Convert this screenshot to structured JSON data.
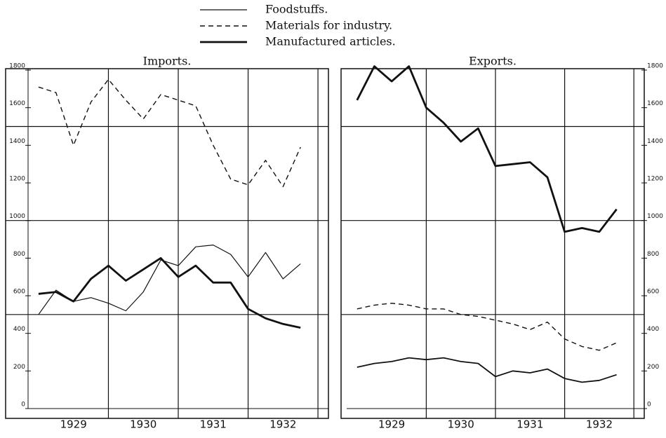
{
  "chart_data": [
    {
      "type": "line",
      "title": "Imports.",
      "x": [
        1929.0,
        1929.25,
        1929.5,
        1929.75,
        1930.0,
        1930.25,
        1930.5,
        1930.75,
        1931.0,
        1931.25,
        1931.5,
        1931.75,
        1932.0,
        1932.25,
        1932.5,
        1932.75
      ],
      "xlim": [
        1928.85,
        1933.15
      ],
      "xticks": [
        {
          "value": 1929.5,
          "label": "1929"
        },
        {
          "value": 1930.5,
          "label": "1930"
        },
        {
          "value": 1931.5,
          "label": "1931"
        },
        {
          "value": 1932.5,
          "label": "1932"
        }
      ],
      "xgrid": [
        1930,
        1931,
        1932,
        1933
      ],
      "ylim": [
        0,
        1800
      ],
      "yticks": [
        0,
        200,
        400,
        600,
        800,
        1000,
        1200,
        1400,
        1600,
        1800
      ],
      "ygrid": [
        500,
        1000,
        1500
      ],
      "axis_side": "left",
      "series": [
        {
          "name": "Foodstuffs.",
          "color": "#111111",
          "style": "solid",
          "width": 1.2,
          "values": [
            500,
            630,
            570,
            590,
            560,
            520,
            620,
            790,
            760,
            860,
            870,
            820,
            700,
            830,
            690,
            770
          ]
        },
        {
          "name": "Materials for industry.",
          "color": "#111111",
          "style": "dashed",
          "width": 1.4,
          "values": [
            1710,
            1680,
            1400,
            1630,
            1750,
            1640,
            1540,
            1670,
            1640,
            1610,
            1400,
            1220,
            1190,
            1320,
            1180,
            1390
          ]
        },
        {
          "name": "Manufactured articles.",
          "color": "#111111",
          "style": "solid",
          "width": 2.8,
          "values": [
            610,
            620,
            570,
            690,
            760,
            680,
            740,
            800,
            700,
            760,
            670,
            670,
            530,
            480,
            450,
            430
          ]
        }
      ]
    },
    {
      "type": "line",
      "title": "Exports.",
      "x": [
        1929.0,
        1929.25,
        1929.5,
        1929.75,
        1930.0,
        1930.25,
        1930.5,
        1930.75,
        1931.0,
        1931.25,
        1931.5,
        1931.75,
        1932.0,
        1932.25,
        1932.5,
        1932.75
      ],
      "xlim": [
        1928.85,
        1933.15
      ],
      "xticks": [
        {
          "value": 1929.5,
          "label": "1929"
        },
        {
          "value": 1930.5,
          "label": "1930"
        },
        {
          "value": 1931.5,
          "label": "1931"
        },
        {
          "value": 1932.5,
          "label": "1932"
        }
      ],
      "xgrid": [
        1930,
        1931,
        1932,
        1933
      ],
      "ylim": [
        0,
        1800
      ],
      "yticks": [
        0,
        200,
        400,
        600,
        800,
        1000,
        1200,
        1400,
        1600,
        1800
      ],
      "ygrid": [
        500,
        1000,
        1500
      ],
      "axis_side": "right",
      "series": [
        {
          "name": "Foodstuffs.",
          "color": "#111111",
          "style": "solid",
          "width": 1.8,
          "values": [
            220,
            240,
            250,
            270,
            260,
            270,
            250,
            240,
            170,
            200,
            190,
            210,
            160,
            140,
            150,
            180
          ]
        },
        {
          "name": "Materials for industry.",
          "color": "#111111",
          "style": "dashed",
          "width": 1.4,
          "values": [
            530,
            550,
            560,
            550,
            530,
            530,
            500,
            490,
            470,
            450,
            420,
            460,
            370,
            330,
            310,
            350
          ]
        },
        {
          "name": "Manufactured articles.",
          "color": "#111111",
          "style": "solid",
          "width": 2.8,
          "values": [
            1640,
            1820,
            1740,
            1820,
            1600,
            1520,
            1420,
            1490,
            1290,
            1300,
            1310,
            1230,
            940,
            960,
            940,
            1060
          ]
        }
      ]
    }
  ]
}
